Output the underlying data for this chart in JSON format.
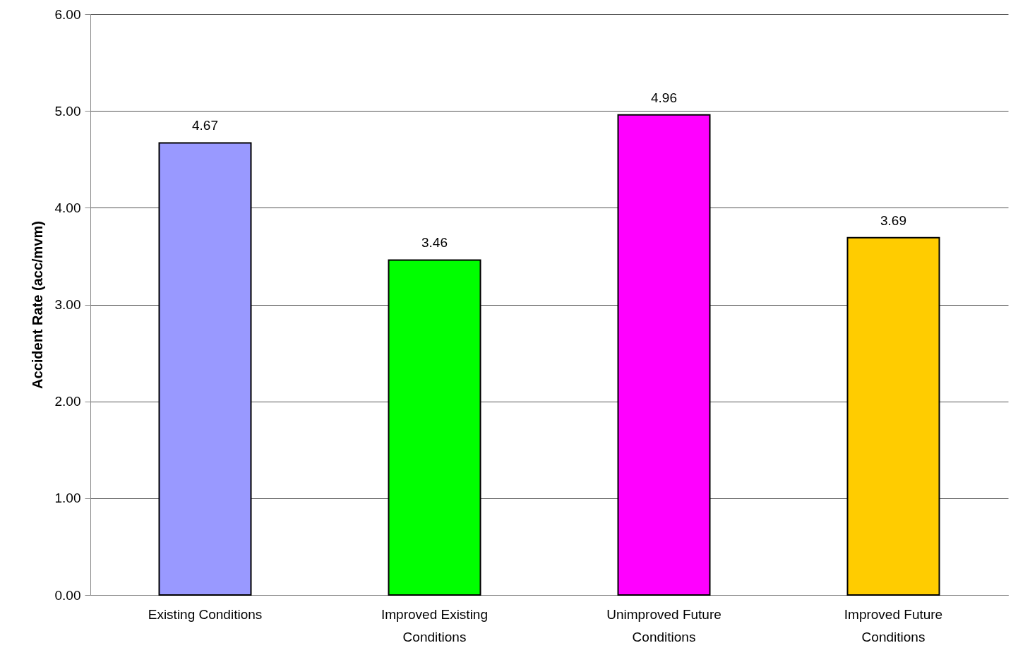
{
  "chart_data": {
    "type": "bar",
    "ylabel": "Accident Rate (acc/mvm)",
    "categories": [
      "Existing Conditions",
      "Improved Existing Conditions",
      "Unimproved Future Conditions",
      "Improved Future Conditions"
    ],
    "values": [
      4.67,
      3.46,
      4.96,
      3.69
    ],
    "colors": [
      "#9999ff",
      "#00ff00",
      "#ff00ff",
      "#ffcc00"
    ],
    "ylim": [
      0,
      6
    ],
    "yticks": [
      {
        "value": 0,
        "label": "0.00"
      },
      {
        "value": 1,
        "label": "1.00"
      },
      {
        "value": 2,
        "label": "2.00"
      },
      {
        "value": 3,
        "label": "3.00"
      },
      {
        "value": 4,
        "label": "4.00"
      },
      {
        "value": 5,
        "label": "5.00"
      },
      {
        "value": 6,
        "label": "6.00"
      }
    ],
    "grid": "y",
    "data_labels": true
  }
}
